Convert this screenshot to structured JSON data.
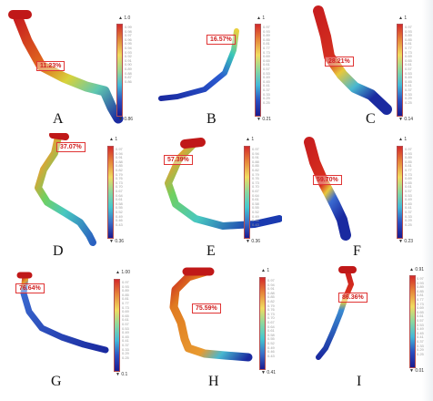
{
  "panels": [
    {
      "letter": "A",
      "percent": "11.23%",
      "scale_top": "▲ 1.0",
      "scale_bottom": "▼ 0.86",
      "ticks": [
        "0.99",
        "0.98",
        "0.97",
        "0.96",
        "0.95",
        "0.94",
        "0.93",
        "0.92",
        "0.91",
        "0.90",
        "0.89",
        "0.88",
        "0.87",
        "0.86"
      ]
    },
    {
      "letter": "B",
      "percent": "16.57%",
      "scale_top": "▲ 1",
      "scale_bottom": "▼ 0.21",
      "ticks": [
        "0.97",
        "0.93",
        "0.89",
        "0.85",
        "0.81",
        "0.77",
        "0.73",
        "0.69",
        "0.65",
        "0.61",
        "0.57",
        "0.53",
        "0.49",
        "0.45",
        "0.41",
        "0.37",
        "0.33",
        "0.29",
        "0.25"
      ]
    },
    {
      "letter": "C",
      "percent": "28.21%",
      "scale_top": "▲ 1",
      "scale_bottom": "▼ 0.14",
      "ticks": [
        "0.97",
        "0.93",
        "0.89",
        "0.85",
        "0.81",
        "0.77",
        "0.73",
        "0.69",
        "0.65",
        "0.61",
        "0.57",
        "0.53",
        "0.49",
        "0.45",
        "0.41",
        "0.37",
        "0.33",
        "0.29",
        "0.25"
      ]
    },
    {
      "letter": "D",
      "percent": "37.07%",
      "scale_top": "▲ 1",
      "scale_bottom": "▼ 0.36",
      "ticks": [
        "0.97",
        "0.94",
        "0.91",
        "0.88",
        "0.85",
        "0.82",
        "0.79",
        "0.76",
        "0.73",
        "0.70",
        "0.67",
        "0.64",
        "0.61",
        "0.58",
        "0.55",
        "0.52",
        "0.49",
        "0.46",
        "0.43"
      ]
    },
    {
      "letter": "E",
      "percent": "57.39%",
      "scale_top": "▲ 1",
      "scale_bottom": "▼ 0.36",
      "ticks": [
        "0.97",
        "0.94",
        "0.91",
        "0.88",
        "0.85",
        "0.82",
        "0.79",
        "0.76",
        "0.73",
        "0.70",
        "0.67",
        "0.64",
        "0.61",
        "0.58",
        "0.55",
        "0.52",
        "0.49",
        "0.46",
        "0.43"
      ]
    },
    {
      "letter": "F",
      "percent": "59.70%",
      "scale_top": "▲ 1",
      "scale_bottom": "▼ 0.23",
      "ticks": [
        "0.97",
        "0.93",
        "0.89",
        "0.85",
        "0.81",
        "0.77",
        "0.73",
        "0.69",
        "0.65",
        "0.61",
        "0.57",
        "0.53",
        "0.49",
        "0.45",
        "0.41",
        "0.37",
        "0.33",
        "0.29",
        "0.25"
      ]
    },
    {
      "letter": "G",
      "percent": "76.64%",
      "scale_top": "▲ 1.00",
      "scale_bottom": "▼ 0.1",
      "ticks": [
        "0.97",
        "0.93",
        "0.89",
        "0.85",
        "0.81",
        "0.77",
        "0.73",
        "0.69",
        "0.65",
        "0.61",
        "0.57",
        "0.53",
        "0.49",
        "0.45",
        "0.41",
        "0.37",
        "0.33",
        "0.29",
        "0.25"
      ]
    },
    {
      "letter": "H",
      "percent": "75.59%",
      "scale_top": "▲ 1",
      "scale_bottom": "▼ 0.41",
      "ticks": [
        "0.97",
        "0.94",
        "0.91",
        "0.88",
        "0.85",
        "0.82",
        "0.79",
        "0.76",
        "0.73",
        "0.70",
        "0.67",
        "0.64",
        "0.61",
        "0.58",
        "0.55",
        "0.52",
        "0.49",
        "0.46",
        "0.43"
      ]
    },
    {
      "letter": "I",
      "percent": "86.36%",
      "scale_top": "▲ 0.91",
      "scale_bottom": "▼ 0.01",
      "ticks": [
        "0.97",
        "0.93",
        "0.89",
        "0.85",
        "0.81",
        "0.77",
        "0.73",
        "0.69",
        "0.65",
        "0.61",
        "0.57",
        "0.53",
        "0.49",
        "0.45",
        "0.41",
        "0.37",
        "0.33",
        "0.29",
        "0.25"
      ]
    }
  ]
}
